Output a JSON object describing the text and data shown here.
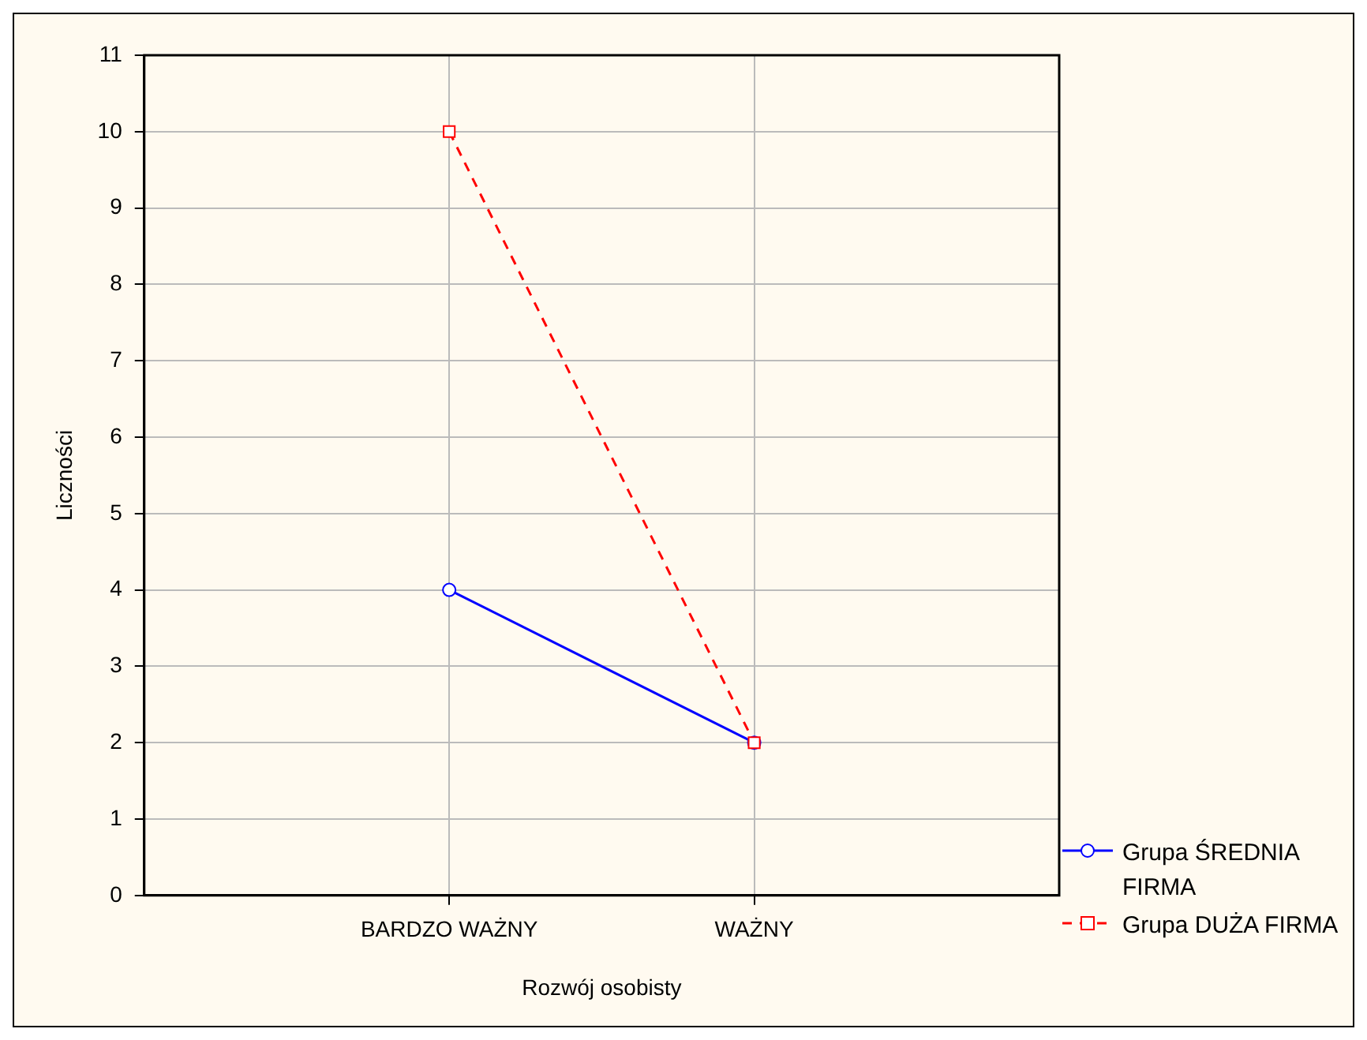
{
  "chart_data": {
    "type": "line",
    "xlabel": "Rozwój osobisty",
    "ylabel": "Liczności",
    "categories": [
      "BARDZO WAŻNY",
      "WAŻNY"
    ],
    "series": [
      {
        "name": "Grupa ŚREDNIA FIRMA",
        "color": "#0000ff",
        "values": [
          4,
          2
        ],
        "marker": "circle",
        "line_style": "solid"
      },
      {
        "name": "Grupa DUŻA FIRMA",
        "color": "#ff0000",
        "values": [
          10,
          2
        ],
        "marker": "square",
        "line_style": "dashed"
      }
    ],
    "ylim": [
      0,
      11
    ],
    "yticks": [
      0,
      1,
      2,
      3,
      4,
      5,
      6,
      7,
      8,
      9,
      10,
      11
    ],
    "grid": true,
    "legend": "bottom right"
  }
}
